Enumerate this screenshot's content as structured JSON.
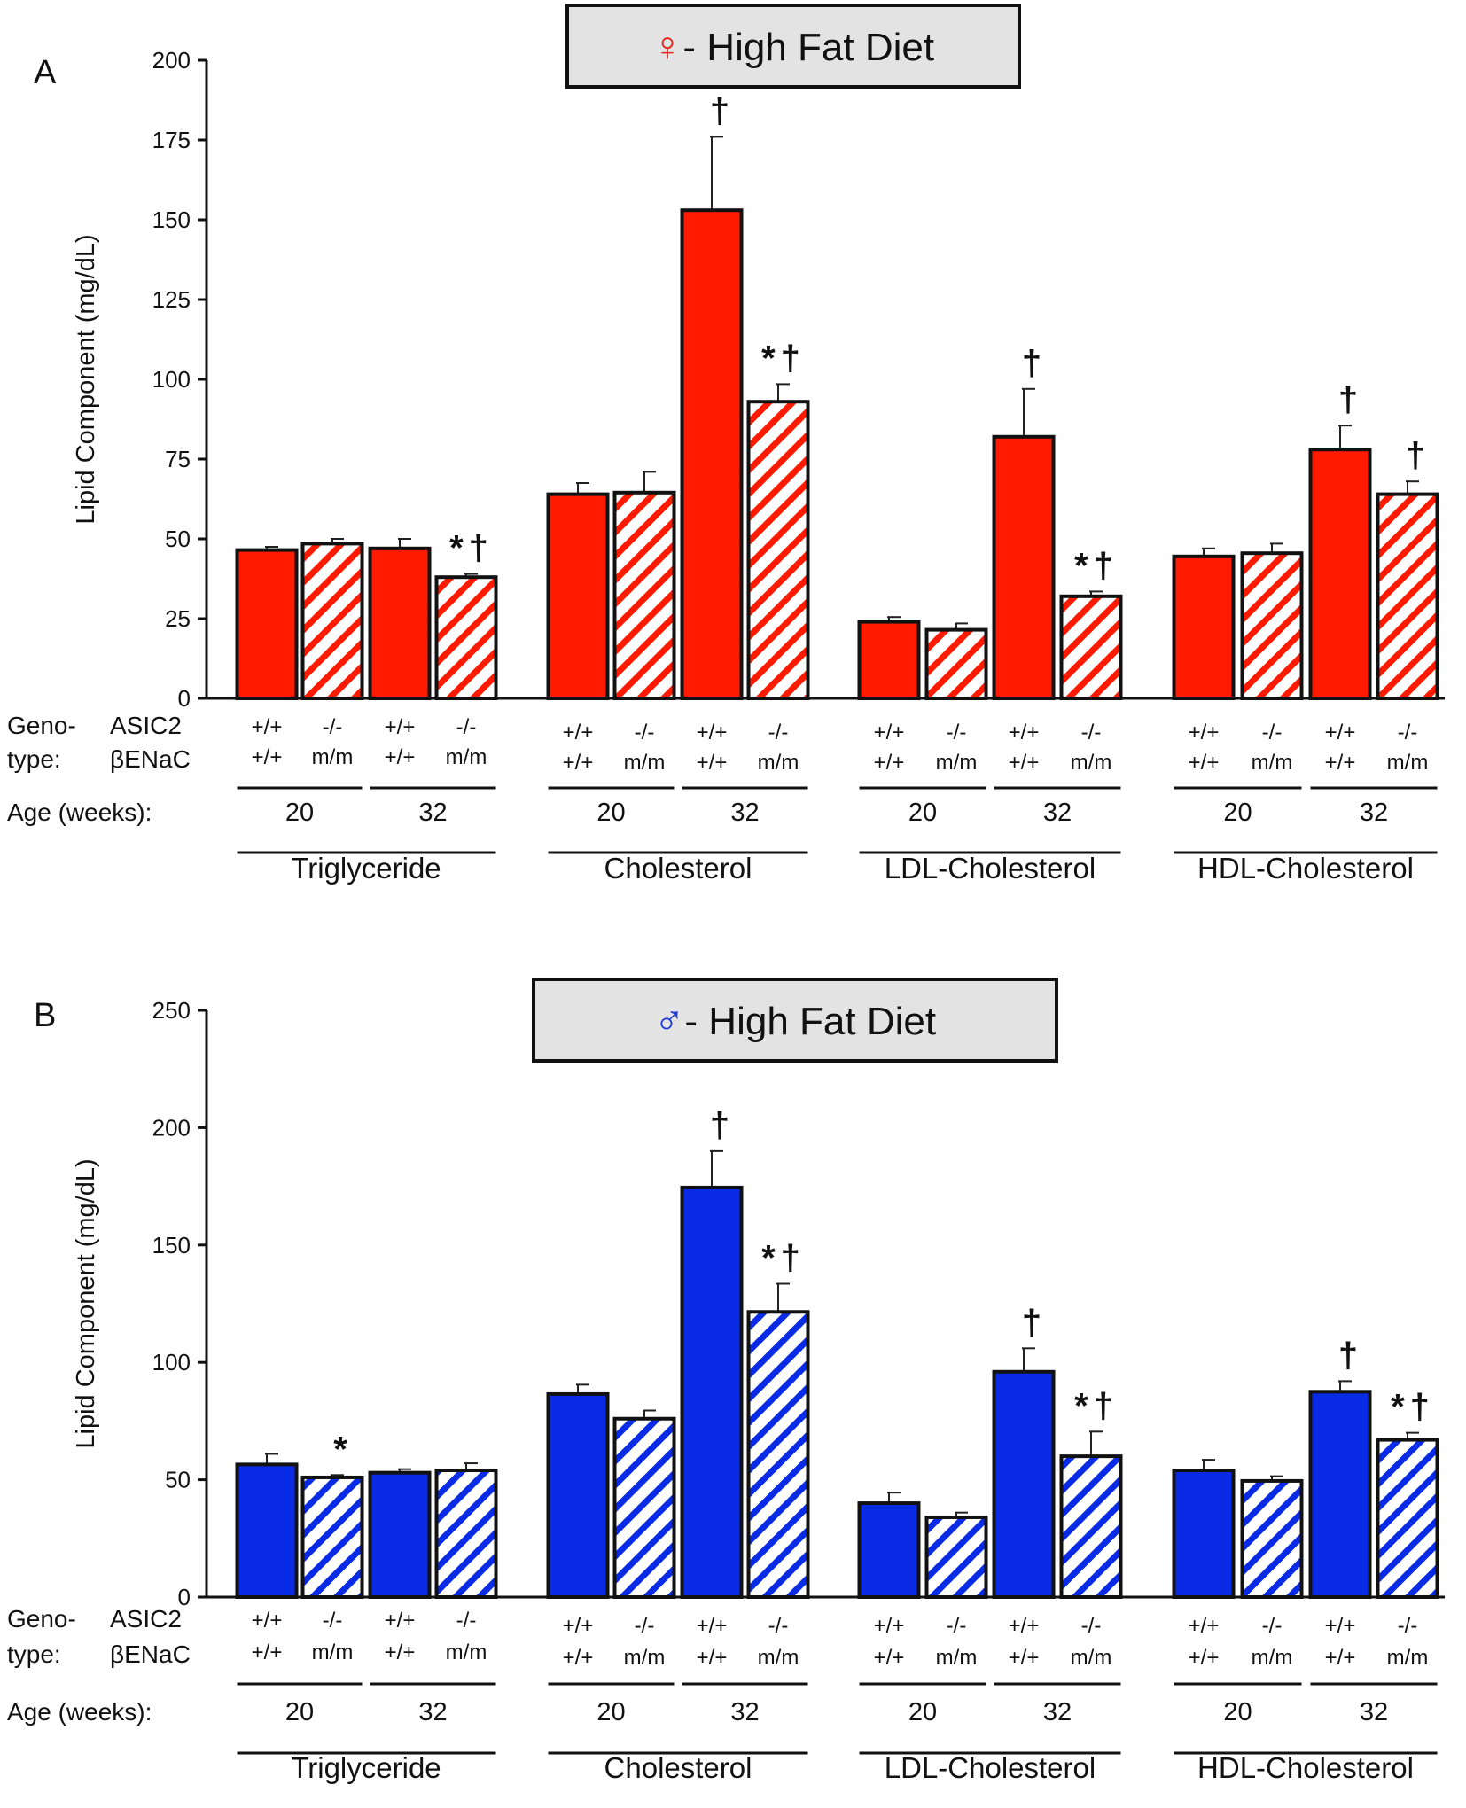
{
  "chart_data": [
    {
      "panel": "A",
      "title": "- High Fat Diet",
      "title_symbol": "♀",
      "title_symbol_color": "#e8261e",
      "ylabel": "Lipid Component (mg/dL)",
      "ylim": [
        0,
        200
      ],
      "yticks": [
        "0",
        "25",
        "50",
        "75",
        "100",
        "125",
        "150",
        "175",
        "200"
      ],
      "type": "bar",
      "bar_color": "#ff1a00",
      "row_labels": {
        "geno_line1": "Geno-",
        "geno_line2": "type:",
        "gene1": "ASIC2",
        "gene2": "βENaC",
        "age": "Age (weeks):"
      },
      "groups": [
        {
          "name": "Triglyceride",
          "ages": [
            "20",
            "32"
          ],
          "bars": [
            {
              "asic2": "+/+",
              "benac": "+/+",
              "hatched": false,
              "value": 46.5,
              "error": 1,
              "sig": ""
            },
            {
              "asic2": "-/-",
              "benac": "m/m",
              "hatched": true,
              "value": 48.5,
              "error": 1.5,
              "sig": ""
            },
            {
              "asic2": "+/+",
              "benac": "+/+",
              "hatched": false,
              "value": 47,
              "error": 3,
              "sig": ""
            },
            {
              "asic2": "-/-",
              "benac": "m/m",
              "hatched": true,
              "value": 38,
              "error": 1,
              "sig": "*†"
            }
          ]
        },
        {
          "name": "Cholesterol",
          "ages": [
            "20",
            "32"
          ],
          "bars": [
            {
              "asic2": "+/+",
              "benac": "+/+",
              "hatched": false,
              "value": 64,
              "error": 3.5,
              "sig": ""
            },
            {
              "asic2": "-/-",
              "benac": "m/m",
              "hatched": true,
              "value": 64.5,
              "error": 6.5,
              "sig": ""
            },
            {
              "asic2": "+/+",
              "benac": "+/+",
              "hatched": false,
              "value": 153,
              "error": 23,
              "sig": "†"
            },
            {
              "asic2": "-/-",
              "benac": "m/m",
              "hatched": true,
              "value": 93,
              "error": 5.5,
              "sig": "*†"
            }
          ]
        },
        {
          "name": "LDL-Cholesterol",
          "ages": [
            "20",
            "32"
          ],
          "bars": [
            {
              "asic2": "+/+",
              "benac": "+/+",
              "hatched": false,
              "value": 24,
              "error": 1.5,
              "sig": ""
            },
            {
              "asic2": "-/-",
              "benac": "m/m",
              "hatched": true,
              "value": 21.5,
              "error": 2,
              "sig": ""
            },
            {
              "asic2": "+/+",
              "benac": "+/+",
              "hatched": false,
              "value": 82,
              "error": 15,
              "sig": "†"
            },
            {
              "asic2": "-/-",
              "benac": "m/m",
              "hatched": true,
              "value": 32,
              "error": 1.5,
              "sig": "*†"
            }
          ]
        },
        {
          "name": "HDL-Cholesterol",
          "ages": [
            "20",
            "32"
          ],
          "bars": [
            {
              "asic2": "+/+",
              "benac": "+/+",
              "hatched": false,
              "value": 44.5,
              "error": 2.5,
              "sig": ""
            },
            {
              "asic2": "-/-",
              "benac": "m/m",
              "hatched": true,
              "value": 45.5,
              "error": 3,
              "sig": ""
            },
            {
              "asic2": "+/+",
              "benac": "+/+",
              "hatched": false,
              "value": 78,
              "error": 7.5,
              "sig": "†"
            },
            {
              "asic2": "-/-",
              "benac": "m/m",
              "hatched": true,
              "value": 64,
              "error": 4,
              "sig": "†"
            }
          ]
        }
      ]
    },
    {
      "panel": "B",
      "title": "- High Fat Diet",
      "title_symbol": "♂",
      "title_symbol_color": "#1a35d8",
      "ylabel": "Lipid Component (mg/dL)",
      "ylim": [
        0,
        250
      ],
      "yticks": [
        "0",
        "50",
        "100",
        "150",
        "200",
        "250"
      ],
      "type": "bar",
      "bar_color": "#0a2be6",
      "row_labels": {
        "geno_line1": "Geno-",
        "geno_line2": "type:",
        "gene1": "ASIC2",
        "gene2": "βENaC",
        "age": "Age (weeks):"
      },
      "groups": [
        {
          "name": "Triglyceride",
          "ages": [
            "20",
            "32"
          ],
          "bars": [
            {
              "asic2": "+/+",
              "benac": "+/+",
              "hatched": false,
              "value": 56.5,
              "error": 4.5,
              "sig": ""
            },
            {
              "asic2": "-/-",
              "benac": "m/m",
              "hatched": true,
              "value": 51,
              "error": 1,
              "sig": "*"
            },
            {
              "asic2": "+/+",
              "benac": "+/+",
              "hatched": false,
              "value": 53,
              "error": 1.5,
              "sig": ""
            },
            {
              "asic2": "-/-",
              "benac": "m/m",
              "hatched": true,
              "value": 54,
              "error": 3,
              "sig": ""
            }
          ]
        },
        {
          "name": "Cholesterol",
          "ages": [
            "20",
            "32"
          ],
          "bars": [
            {
              "asic2": "+/+",
              "benac": "+/+",
              "hatched": false,
              "value": 86.5,
              "error": 4,
              "sig": ""
            },
            {
              "asic2": "-/-",
              "benac": "m/m",
              "hatched": true,
              "value": 76,
              "error": 3.5,
              "sig": ""
            },
            {
              "asic2": "+/+",
              "benac": "+/+",
              "hatched": false,
              "value": 174.5,
              "error": 15.5,
              "sig": "†"
            },
            {
              "asic2": "-/-",
              "benac": "m/m",
              "hatched": true,
              "value": 121.5,
              "error": 12,
              "sig": "*†"
            }
          ]
        },
        {
          "name": "LDL-Cholesterol",
          "ages": [
            "20",
            "32"
          ],
          "bars": [
            {
              "asic2": "+/+",
              "benac": "+/+",
              "hatched": false,
              "value": 40,
              "error": 4.5,
              "sig": ""
            },
            {
              "asic2": "-/-",
              "benac": "m/m",
              "hatched": true,
              "value": 34,
              "error": 2,
              "sig": ""
            },
            {
              "asic2": "+/+",
              "benac": "+/+",
              "hatched": false,
              "value": 96,
              "error": 10,
              "sig": "†"
            },
            {
              "asic2": "-/-",
              "benac": "m/m",
              "hatched": true,
              "value": 60,
              "error": 10.5,
              "sig": "*†"
            }
          ]
        },
        {
          "name": "HDL-Cholesterol",
          "ages": [
            "20",
            "32"
          ],
          "bars": [
            {
              "asic2": "+/+",
              "benac": "+/+",
              "hatched": false,
              "value": 54,
              "error": 4.5,
              "sig": ""
            },
            {
              "asic2": "-/-",
              "benac": "m/m",
              "hatched": true,
              "value": 49.5,
              "error": 2,
              "sig": ""
            },
            {
              "asic2": "+/+",
              "benac": "+/+",
              "hatched": false,
              "value": 87.5,
              "error": 4.5,
              "sig": "†"
            },
            {
              "asic2": "-/-",
              "benac": "m/m",
              "hatched": true,
              "value": 67,
              "error": 3,
              "sig": "*†"
            }
          ]
        }
      ]
    }
  ]
}
